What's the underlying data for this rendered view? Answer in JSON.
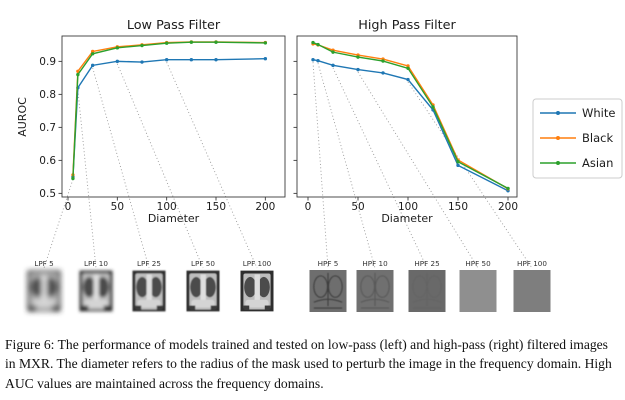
{
  "caption": {
    "text": "Figure 6: The performance of models trained and tested on low-pass (left) and high-pass (right) filtered images in MXR. The diameter refers to the radius of the mask used to perturb the image in the frequency domain. High AUC values are maintained across the frequency domains."
  },
  "colors": {
    "white_series": "#1f77b4",
    "black_series": "#ff7f0e",
    "asian_series": "#2ca02c",
    "connector_line": "#9a9a9a",
    "axis": "#3a3a3a"
  },
  "legend": {
    "position": "right",
    "entries": [
      {
        "label": "White",
        "color": "#1f77b4"
      },
      {
        "label": "Black",
        "color": "#ff7f0e"
      },
      {
        "label": "Asian",
        "color": "#2ca02c"
      }
    ]
  },
  "chart_data": [
    {
      "type": "line",
      "title": "Low Pass Filter",
      "xlabel": "Diameter",
      "ylabel": "AUROC",
      "x": [
        5,
        10,
        25,
        50,
        75,
        100,
        125,
        150,
        200
      ],
      "xticks": [
        0,
        50,
        100,
        150,
        200
      ],
      "yticks": [
        0.5,
        0.6,
        0.7,
        0.8,
        0.9
      ],
      "ylim": [
        0.49,
        0.98
      ],
      "xlim": [
        -6,
        220
      ],
      "grid": false,
      "series": [
        {
          "name": "White",
          "color": "#1f77b4",
          "values": [
            0.55,
            0.82,
            0.888,
            0.9,
            0.898,
            0.905,
            0.905,
            0.905,
            0.908
          ]
        },
        {
          "name": "Black",
          "color": "#ff7f0e",
          "values": [
            0.556,
            0.87,
            0.93,
            0.944,
            0.95,
            0.957,
            0.959,
            0.959,
            0.957
          ]
        },
        {
          "name": "Asian",
          "color": "#2ca02c",
          "values": [
            0.545,
            0.86,
            0.923,
            0.941,
            0.948,
            0.955,
            0.958,
            0.958,
            0.956
          ]
        }
      ],
      "connector_diameters": [
        5,
        10,
        25,
        50,
        100
      ]
    },
    {
      "type": "line",
      "title": "High Pass Filter",
      "xlabel": "Diameter",
      "ylabel": "",
      "x": [
        5,
        10,
        25,
        50,
        75,
        100,
        125,
        150,
        200
      ],
      "xticks": [
        0,
        50,
        100,
        150,
        200
      ],
      "yticks": [
        0.5,
        0.6,
        0.7,
        0.8,
        0.9
      ],
      "ylim": [
        0.49,
        0.98
      ],
      "xlim": [
        -11,
        209
      ],
      "grid": false,
      "series": [
        {
          "name": "White",
          "color": "#1f77b4",
          "values": [
            0.905,
            0.902,
            0.888,
            0.875,
            0.865,
            0.845,
            0.753,
            0.585,
            0.508
          ]
        },
        {
          "name": "Black",
          "color": "#ff7f0e",
          "values": [
            0.953,
            0.95,
            0.934,
            0.919,
            0.907,
            0.886,
            0.768,
            0.601,
            0.514
          ]
        },
        {
          "name": "Asian",
          "color": "#2ca02c",
          "values": [
            0.957,
            0.951,
            0.928,
            0.913,
            0.901,
            0.879,
            0.762,
            0.596,
            0.515
          ]
        }
      ],
      "connector_diameters": [
        5,
        10,
        25,
        50,
        100
      ]
    }
  ],
  "thumbnails": [
    {
      "group": "low-pass-examples",
      "items": [
        {
          "label": "LPF 5",
          "style": "xray",
          "blur": 2.6
        },
        {
          "label": "LPF 10",
          "style": "xray",
          "blur": 1.5
        },
        {
          "label": "LPF 25",
          "style": "xray",
          "blur": 0.8
        },
        {
          "label": "LPF 50",
          "style": "xray",
          "blur": 0.45
        },
        {
          "label": "LPF 100",
          "style": "xray",
          "blur": 0.25
        }
      ]
    },
    {
      "group": "high-pass-examples",
      "items": [
        {
          "label": "HPF 5",
          "style": "edges",
          "bg": "#6e6e6e",
          "edge_opacity": 1
        },
        {
          "label": "HPF 10",
          "style": "edges",
          "bg": "#707070",
          "edge_opacity": 0.45
        },
        {
          "label": "HPF 25",
          "style": "flat",
          "bg": "#696969",
          "edge_opacity": 0.1
        },
        {
          "label": "HPF 50",
          "style": "flat",
          "bg": "#8f8f8f",
          "edge_opacity": 0
        },
        {
          "label": "HPF 100",
          "style": "flat",
          "bg": "#7e7e7e",
          "edge_opacity": 0
        }
      ]
    }
  ]
}
